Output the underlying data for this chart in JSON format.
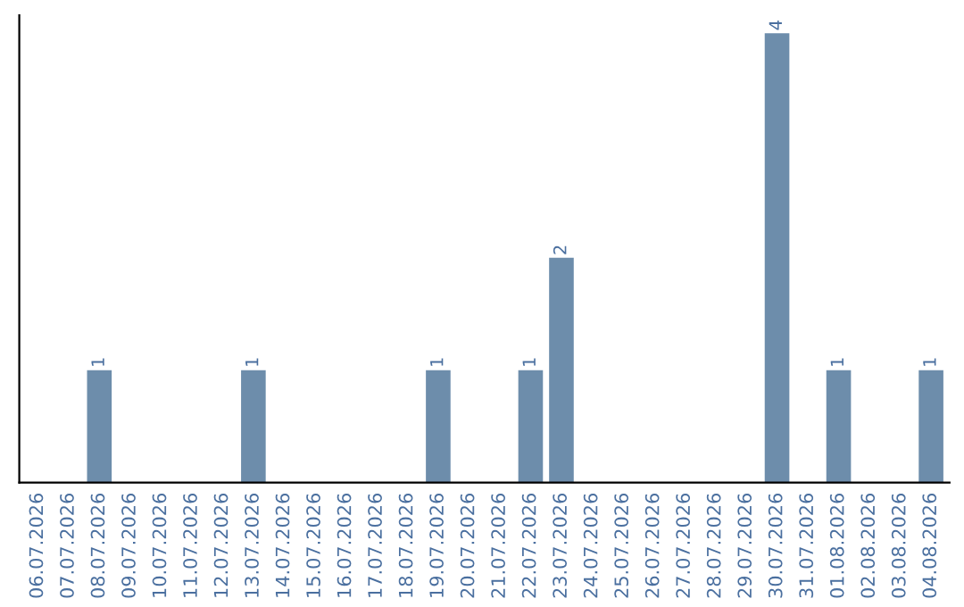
{
  "chart_data": {
    "type": "bar",
    "categories": [
      "06.07.2026",
      "07.07.2026",
      "08.07.2026",
      "09.07.2026",
      "10.07.2026",
      "11.07.2026",
      "12.07.2026",
      "13.07.2026",
      "14.07.2026",
      "15.07.2026",
      "16.07.2026",
      "17.07.2026",
      "18.07.2026",
      "19.07.2026",
      "20.07.2026",
      "21.07.2026",
      "22.07.2026",
      "23.07.2026",
      "24.07.2026",
      "25.07.2026",
      "26.07.2026",
      "27.07.2026",
      "28.07.2026",
      "29.07.2026",
      "30.07.2026",
      "31.07.2026",
      "01.08.2026",
      "02.08.2026",
      "03.08.2026",
      "04.08.2026"
    ],
    "values": [
      0,
      0,
      1,
      0,
      0,
      0,
      0,
      1,
      0,
      0,
      0,
      0,
      0,
      1,
      0,
      0,
      1,
      2,
      0,
      0,
      0,
      0,
      0,
      0,
      4,
      0,
      1,
      0,
      0,
      1
    ],
    "value_labels": [
      null,
      null,
      "1",
      null,
      null,
      null,
      null,
      "1",
      null,
      null,
      null,
      null,
      null,
      "1",
      null,
      null,
      "1",
      "2",
      null,
      null,
      null,
      null,
      null,
      null,
      "4",
      null,
      "1",
      null,
      null,
      "1"
    ],
    "color": "#6d8dab",
    "grid": false,
    "tick_labels": "x"
  }
}
